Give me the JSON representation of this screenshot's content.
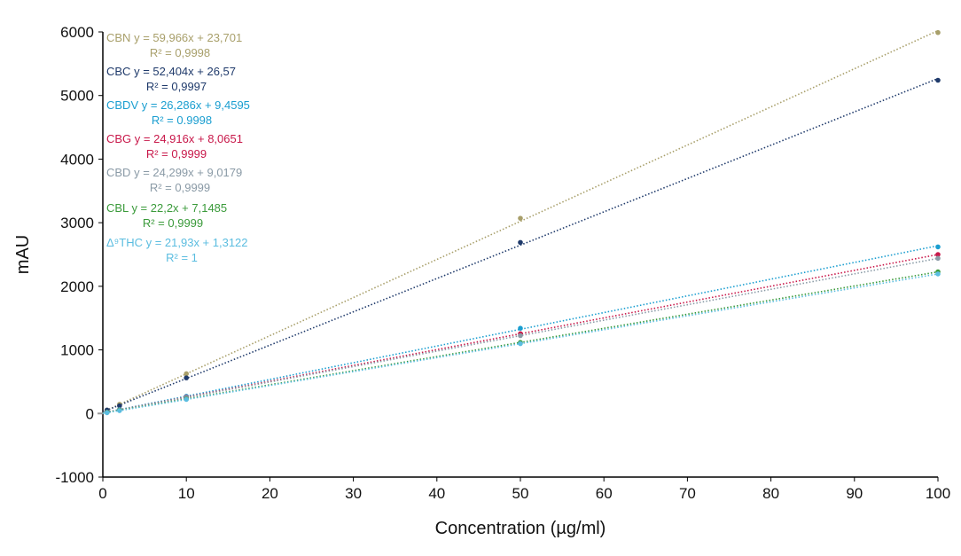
{
  "chart_data": {
    "type": "scatter",
    "title": "",
    "xlabel": "Concentration (µg/ml)",
    "ylabel": "mAU",
    "xlim": [
      0,
      100
    ],
    "ylim": [
      -1000,
      6000
    ],
    "xticks": [
      "0",
      "10",
      "20",
      "30",
      "40",
      "50",
      "60",
      "70",
      "80",
      "90",
      "100"
    ],
    "yticks": [
      "-1000",
      "0",
      "1000",
      "2000",
      "3000",
      "4000",
      "5000",
      "6000"
    ],
    "grid": false,
    "legend_position": "top-left",
    "trendline_style": "dotted linear",
    "x": [
      0.5,
      2,
      10,
      50,
      100
    ],
    "series": [
      {
        "name": "CBN",
        "color": "#a89f6a",
        "equation": "y = 59,966x + 23,701",
        "r2": "R² = 0,9998",
        "values": [
          54,
          144,
          625,
          3070,
          5990
        ],
        "slope": 59.966,
        "intercept": 23.701
      },
      {
        "name": "CBC",
        "color": "#1f3a6b",
        "equation": "y = 52,404x + 26,57",
        "r2": "R² = 0,9997",
        "values": [
          53,
          120,
          560,
          2690,
          5240
        ],
        "slope": 52.404,
        "intercept": 26.57
      },
      {
        "name": "CBDV",
        "color": "#1a9ed0",
        "equation": "y = 26,286x + 9,4595",
        "r2": "R² = 0.9998",
        "values": [
          23,
          62,
          270,
          1340,
          2620
        ],
        "slope": 26.286,
        "intercept": 9.4595
      },
      {
        "name": "CBG",
        "color": "#c8184a",
        "equation": "y = 24,916x + 8,0651",
        "r2": "R² = 0,9999",
        "values": [
          21,
          58,
          257,
          1254,
          2500
        ],
        "slope": 24.916,
        "intercept": 8.0651
      },
      {
        "name": "CBD",
        "color": "#8a9aa6",
        "equation": "y = 24,299x + 9,0179",
        "r2": "R² = 0,9999",
        "values": [
          21,
          58,
          252,
          1224,
          2440
        ],
        "slope": 24.299,
        "intercept": 9.0179
      },
      {
        "name": "CBL",
        "color": "#3a9a3a",
        "equation": "y = 22,2x + 7,1485",
        "r2": "R² = 0,9999",
        "values": [
          18,
          52,
          229,
          1117,
          2227
        ],
        "slope": 22.2,
        "intercept": 7.1485
      },
      {
        "name": "Δ⁹THC",
        "color": "#5bbde0",
        "equation": "y = 21,93x + 1,3122",
        "r2": "R² = 1",
        "values": [
          12,
          45,
          221,
          1098,
          2194
        ],
        "slope": 21.93,
        "intercept": 1.3122
      }
    ]
  }
}
